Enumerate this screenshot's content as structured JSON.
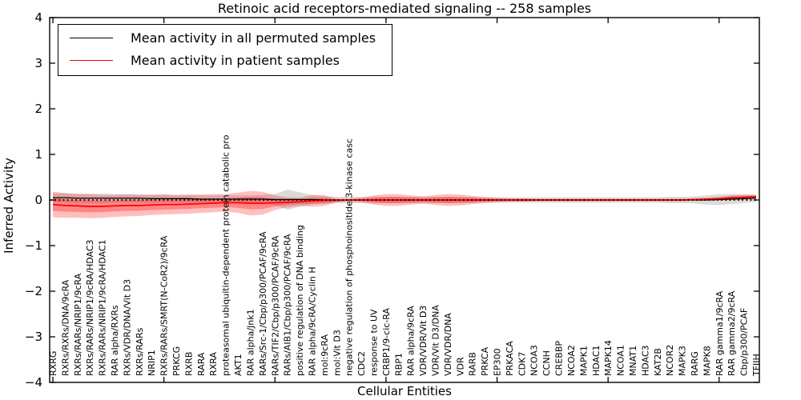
{
  "chart_data": {
    "type": "line",
    "title": "Retinoic acid receptors-mediated signaling -- 258 samples",
    "xlabel": "Cellular Entities",
    "ylabel": "Inferred Activity",
    "ylim": [
      -4,
      4
    ],
    "yticks": [
      4,
      3,
      2,
      1,
      0,
      -1,
      -2,
      -3,
      -4
    ],
    "x_major_tick_every": 9,
    "grid": false,
    "legend_position": "upper left",
    "legend": [
      {
        "label": "Mean activity in all permuted samples",
        "color": "#000000"
      },
      {
        "label": "Mean activity in patient samples",
        "color": "#ff0000"
      }
    ],
    "categories": [
      "RXRG",
      "RXRs/RXRs/DNA/9cRA",
      "RXRs/RARs/NRIP1/9cRA",
      "RXRs/RARs/NRIP1/9cRA/HDAC3",
      "RXRs/RARs/NRIP1/9cRA/HDAC1",
      "RAR alpha/RXRs",
      "RXRs/VDR/DNA/Vit D3",
      "RXRs/RARs",
      "NRIP1",
      "RXRs/RARs/SMRT(N-CoR2)/9cRA",
      "PRKCG",
      "RXRB",
      "RARA",
      "RXRA",
      "proteasomal ubiquitin-dependent protein catabolic pro",
      "AKT1",
      "RAR alpha/Jnk1",
      "RARs/Src-1/Cbp/p300/PCAF/9cRA",
      "RARs/TIF2/Cbp/p300/PCAF/9cRA",
      "RARs/AIB1/Cbp/p300/PCAF/9cRA",
      "positive regulation of DNA binding",
      "RAR alpha/9cRA/Cyclin H",
      "mol:9cRA",
      "mol:Vit D3",
      "negative regulation of phosphoinositide 3-kinase casc",
      "CDC2",
      "response to UV",
      "CRBP1/9-cic-RA",
      "RBP1",
      "RAR alpha/9cRA",
      "VDR/VDR/Vit D3",
      "VDR/Vit D3/DNA",
      "VDR/VDR/DNA",
      "VDR",
      "RARB",
      "PRKCA",
      "EP300",
      "PRKACA",
      "CDK7",
      "NCOA3",
      "CCNH",
      "CREBBP",
      "NCOA2",
      "MAPK1",
      "HDAC1",
      "MAPK14",
      "NCOA1",
      "MNAT1",
      "HDAC3",
      "KAT2B",
      "NCOR2",
      "MAPK3",
      "RARG",
      "MAPK8",
      "RAR gamma1/9cRA",
      "RAR gamma2/9cRA",
      "Cbp/p300/PCAF",
      "TFIIH"
    ],
    "series": [
      {
        "name": "Mean activity in all permuted samples",
        "color": "#000000",
        "band_color": "#000000",
        "band_opacity": 0.14,
        "mean": [
          0.05,
          0.05,
          0.04,
          0.04,
          0.04,
          0.04,
          0.04,
          0.04,
          0.03,
          0.03,
          0.03,
          0.03,
          0.02,
          0.02,
          0.02,
          0.02,
          0.02,
          0.02,
          0.01,
          0.01,
          0.01,
          0.01,
          0,
          0,
          0,
          0,
          0,
          0,
          0,
          0,
          0,
          0,
          0,
          0,
          0,
          0,
          0,
          0,
          0,
          0,
          0,
          0,
          0,
          0,
          0,
          0,
          0,
          0,
          0,
          0,
          0,
          0,
          0,
          0,
          0.01,
          0.02,
          0.03,
          0.04
        ],
        "std": [
          0.1,
          0.1,
          0.1,
          0.1,
          0.1,
          0.09,
          0.09,
          0.09,
          0.09,
          0.09,
          0.08,
          0.08,
          0.08,
          0.08,
          0.08,
          0.08,
          0.08,
          0.09,
          0.12,
          0.22,
          0.16,
          0.1,
          0.08,
          0.07,
          0.07,
          0.07,
          0.07,
          0.07,
          0.07,
          0.07,
          0.07,
          0.07,
          0.07,
          0.07,
          0.07,
          0.07,
          0.06,
          0.06,
          0.06,
          0.06,
          0.06,
          0.06,
          0.06,
          0.06,
          0.06,
          0.06,
          0.06,
          0.06,
          0.06,
          0.06,
          0.07,
          0.07,
          0.08,
          0.1,
          0.12,
          0.11,
          0.1,
          0.08
        ]
      },
      {
        "name": "Mean activity in patient samples",
        "color": "#ff0000",
        "band_color": "#ff0000",
        "band_opacity": 0.25,
        "mean": [
          -0.1,
          -0.12,
          -0.13,
          -0.14,
          -0.14,
          -0.13,
          -0.12,
          -0.12,
          -0.11,
          -0.1,
          -0.1,
          -0.09,
          -0.08,
          -0.07,
          -0.06,
          -0.06,
          -0.07,
          -0.07,
          -0.06,
          -0.05,
          -0.04,
          -0.02,
          -0.01,
          -0.01,
          0,
          0,
          0,
          0,
          0,
          0,
          0,
          0,
          0,
          0,
          0,
          0,
          0,
          0,
          0,
          0,
          0,
          0,
          0,
          0,
          0,
          0,
          0,
          0,
          0,
          0,
          0,
          0,
          0.01,
          0.02,
          0.03,
          0.05,
          0.06,
          0.07
        ],
        "std": [
          0.28,
          0.27,
          0.26,
          0.26,
          0.25,
          0.24,
          0.24,
          0.23,
          0.22,
          0.22,
          0.21,
          0.21,
          0.2,
          0.2,
          0.19,
          0.22,
          0.27,
          0.25,
          0.16,
          0.11,
          0.09,
          0.13,
          0.12,
          0.04,
          0.03,
          0.05,
          0.1,
          0.13,
          0.13,
          0.1,
          0.08,
          0.11,
          0.13,
          0.12,
          0.09,
          0.06,
          0.05,
          0.04,
          0.04,
          0.03,
          0.03,
          0.03,
          0.03,
          0.03,
          0.03,
          0.03,
          0.03,
          0.03,
          0.03,
          0.03,
          0.03,
          0.03,
          0.03,
          0.03,
          0.04,
          0.05,
          0.05,
          0.04
        ]
      }
    ]
  }
}
